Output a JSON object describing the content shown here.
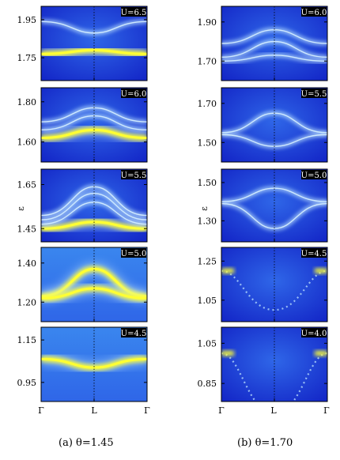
{
  "colors": {
    "background_dark": "#1428c8",
    "background_mid": "#2f66e8",
    "band_light": "#bfe6ff",
    "band_bright": "#ffff33"
  },
  "y_axis_label": "ε",
  "x_tick_labels": [
    "Γ",
    "L",
    "Γ"
  ],
  "captions": {
    "left": "(a) θ=1.45",
    "right": "(b) θ=1.70"
  },
  "chart_data": [
    {
      "type": "heatmap",
      "column": "a",
      "U_label": "U=6.5",
      "ylim": [
        1.63,
        2.02
      ],
      "yticks": [
        1.75,
        1.95
      ],
      "tick_labels": [
        "1.75",
        "1.95"
      ],
      "bands": [
        {
          "edge": 1.77,
          "mid": 1.79,
          "style": "bright"
        },
        {
          "edge": 1.94,
          "mid": 1.88,
          "style": "light"
        }
      ]
    },
    {
      "type": "heatmap",
      "column": "a",
      "U_label": "U=6.0",
      "ylim": [
        1.5,
        1.87
      ],
      "yticks": [
        1.6,
        1.8
      ],
      "tick_labels": [
        "1.60",
        "1.80"
      ],
      "bands": [
        {
          "edge": 1.62,
          "mid": 1.66,
          "style": "bright"
        },
        {
          "edge": 1.66,
          "mid": 1.73,
          "style": "light"
        },
        {
          "edge": 1.7,
          "mid": 1.77,
          "style": "light"
        }
      ]
    },
    {
      "type": "heatmap",
      "column": "a",
      "U_label": "U=5.5",
      "ylim": [
        1.39,
        1.72
      ],
      "yticks": [
        1.45,
        1.65
      ],
      "tick_labels": [
        "1.45",
        "1.65"
      ],
      "bands": [
        {
          "edge": 1.45,
          "mid": 1.48,
          "style": "bright"
        },
        {
          "edge": 1.47,
          "mid": 1.57,
          "style": "light"
        },
        {
          "edge": 1.49,
          "mid": 1.61,
          "style": "light"
        },
        {
          "edge": 1.51,
          "mid": 1.64,
          "style": "light"
        }
      ]
    },
    {
      "type": "heatmap",
      "column": "a",
      "U_label": "U=5.0",
      "ylim": [
        1.1,
        1.48
      ],
      "yticks": [
        1.2,
        1.4
      ],
      "tick_labels": [
        "1.20",
        "1.40"
      ],
      "bands": [
        {
          "edge": 1.23,
          "mid": 1.37,
          "style": "bright"
        },
        {
          "edge": 1.22,
          "mid": 1.27,
          "style": "bright"
        }
      ]
    },
    {
      "type": "heatmap",
      "column": "a",
      "U_label": "U=4.5",
      "ylim": [
        0.86,
        1.21
      ],
      "yticks": [
        0.95,
        1.15
      ],
      "tick_labels": [
        "0.95",
        "1.15"
      ],
      "bands": [
        {
          "edge": 1.06,
          "mid": 1.02,
          "style": "bright"
        }
      ]
    },
    {
      "type": "heatmap",
      "column": "b",
      "U_label": "U=6.0",
      "ylim": [
        1.6,
        1.98
      ],
      "yticks": [
        1.7,
        1.9
      ],
      "tick_labels": [
        "1.70",
        "1.90"
      ],
      "bands": [
        {
          "edge": 1.7,
          "mid": 1.73,
          "style": "light"
        },
        {
          "edge": 1.72,
          "mid": 1.8,
          "style": "light"
        },
        {
          "edge": 1.79,
          "mid": 1.86,
          "style": "light"
        }
      ]
    },
    {
      "type": "heatmap",
      "column": "b",
      "U_label": "U=5.5",
      "ylim": [
        1.4,
        1.78
      ],
      "yticks": [
        1.5,
        1.7
      ],
      "tick_labels": [
        "1.50",
        "1.70"
      ],
      "bands": [
        {
          "edge": 1.55,
          "mid": 1.65,
          "style": "light"
        },
        {
          "edge": 1.54,
          "mid": 1.48,
          "style": "light"
        }
      ]
    },
    {
      "type": "heatmap",
      "column": "b",
      "U_label": "U=5.0",
      "ylim": [
        1.19,
        1.57
      ],
      "yticks": [
        1.3,
        1.5
      ],
      "tick_labels": [
        "1.30",
        "1.50"
      ],
      "bands": [
        {
          "edge": 1.4,
          "mid": 1.47,
          "style": "light"
        },
        {
          "edge": 1.39,
          "mid": 1.26,
          "style": "light"
        }
      ]
    },
    {
      "type": "heatmap",
      "column": "b",
      "U_label": "U=4.5",
      "ylim": [
        0.94,
        1.32
      ],
      "yticks": [
        1.05,
        1.25
      ],
      "tick_labels": [
        "1.05",
        "1.25"
      ],
      "bands": [
        {
          "edge": 1.2,
          "mid": 1.0,
          "style": "dotted"
        }
      ]
    },
    {
      "type": "heatmap",
      "column": "b",
      "U_label": "U=4.0",
      "ylim": [
        0.76,
        1.13
      ],
      "yticks": [
        0.85,
        1.05
      ],
      "tick_labels": [
        "0.85",
        "1.05"
      ],
      "bands": [
        {
          "edge": 1.0,
          "mid": 0.7,
          "style": "dotted"
        }
      ]
    }
  ]
}
